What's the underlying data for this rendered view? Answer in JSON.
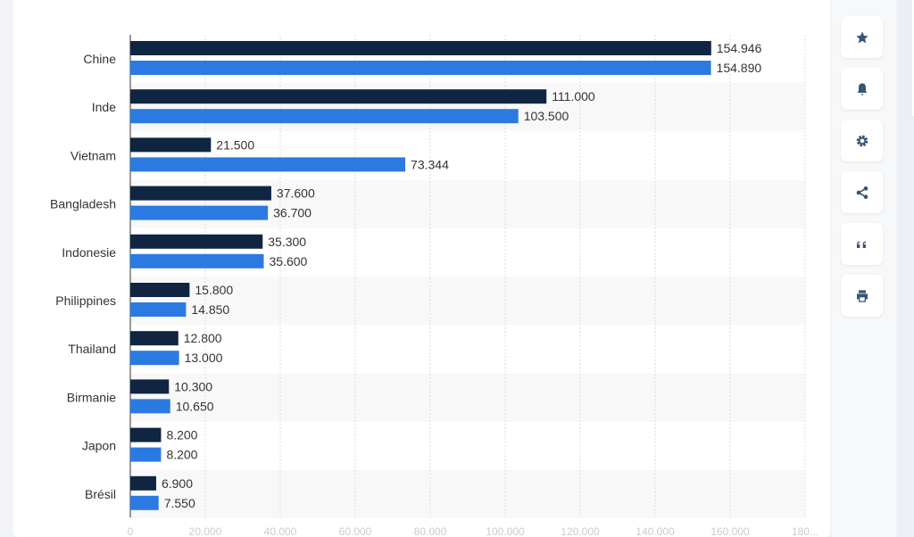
{
  "chart_data": {
    "type": "bar",
    "orientation": "horizontal",
    "categories": [
      "Chine",
      "Inde",
      "Vietnam",
      "Bangladesh",
      "Indonesie",
      "Philippines",
      "Thailand",
      "Birmanie",
      "Japon",
      "Brésil"
    ],
    "series": [
      {
        "name": "series-1",
        "color": "#0f2541",
        "values": [
          154946,
          111000,
          21500,
          37600,
          35300,
          15800,
          12800,
          10300,
          8200,
          6900
        ],
        "labels": [
          "154.946",
          "111.000",
          "21.500",
          "37.600",
          "35.300",
          "15.800",
          "12.800",
          "10.300",
          "8.200",
          "6.900"
        ]
      },
      {
        "name": "series-2",
        "color": "#2b7ae2",
        "values": [
          154890,
          103500,
          73344,
          36700,
          35600,
          14850,
          13000,
          10650,
          8200,
          7550
        ],
        "labels": [
          "154.890",
          "103.500",
          "73.344",
          "36.700",
          "35.600",
          "14.850",
          "13.000",
          "10.650",
          "8.200",
          "7.550"
        ]
      }
    ],
    "xlim": [
      0,
      180000
    ],
    "x_ticks": [
      0,
      20000,
      40000,
      60000,
      80000,
      100000,
      120000,
      140000,
      160000,
      180000
    ],
    "x_tick_labels": [
      "0",
      "20.000",
      "40.000",
      "60.000",
      "80.000",
      "100.000",
      "120.000",
      "140.000",
      "160.000",
      "180..."
    ],
    "grid": true
  },
  "sidebar": {
    "buttons": [
      "star-icon",
      "bell-icon",
      "gear-icon",
      "share-icon",
      "quote-icon",
      "print-icon"
    ]
  }
}
